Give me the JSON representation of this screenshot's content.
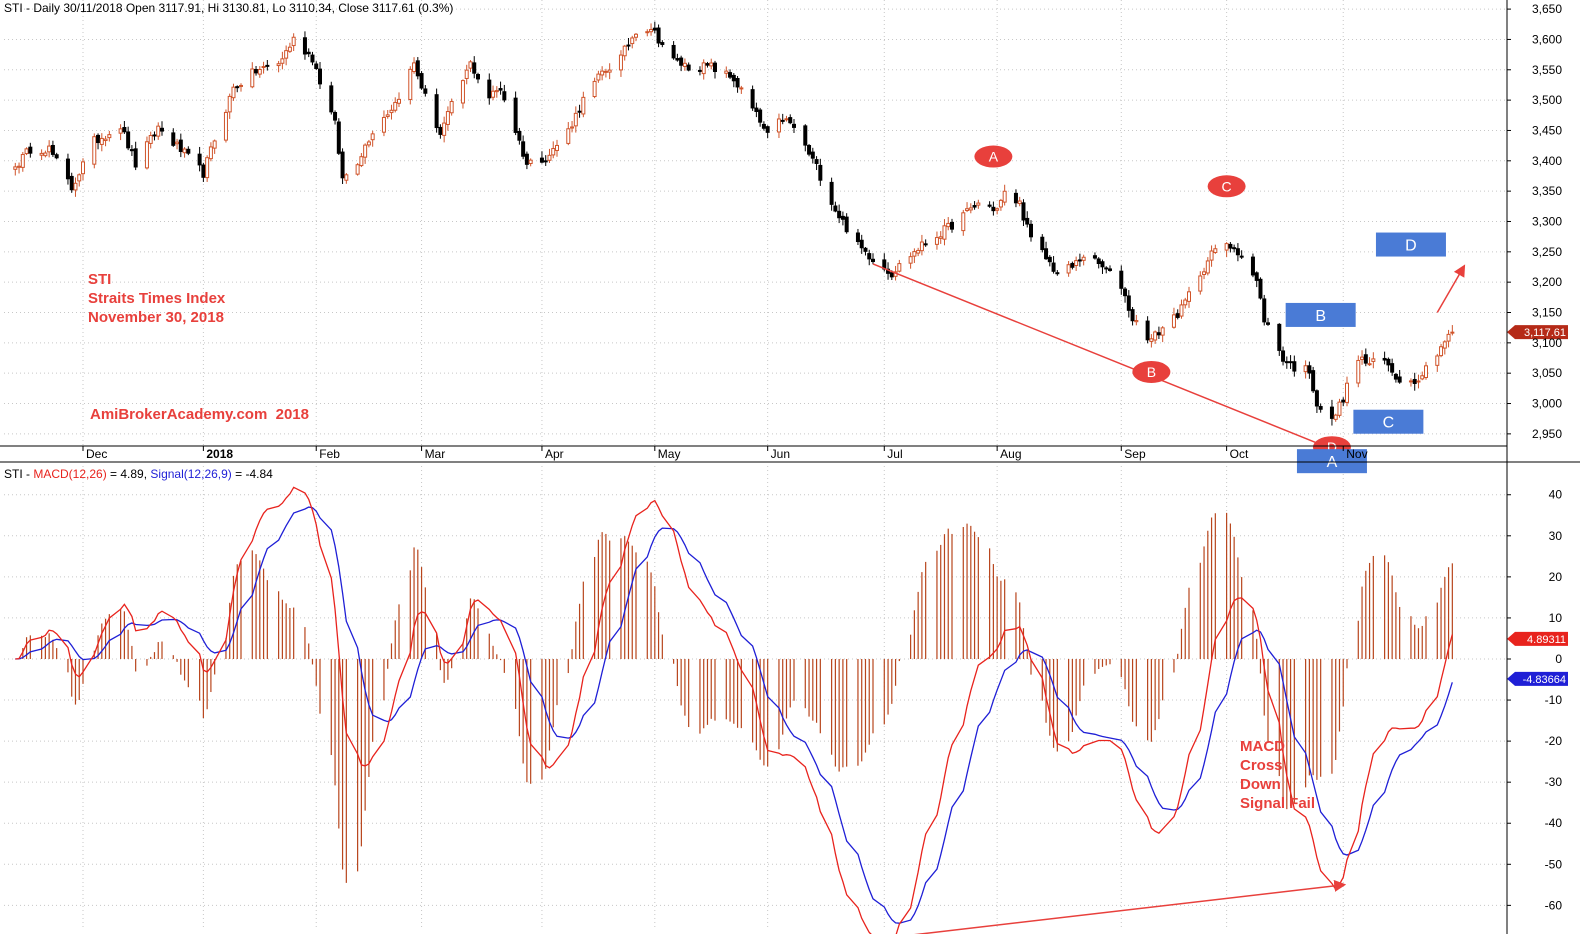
{
  "header": {
    "price_title": "STI - Daily 30/11/2018 Open 3117.91, Hi 3130.81, Lo 3110.34, Close 3117.61 (0.3%)",
    "macd_prefix": "STI - ",
    "macd_label": "MACD(12,26)",
    "macd_value": " = 4.89, ",
    "signal_label": "Signal(12,26,9)",
    "signal_value": " = -4.84"
  },
  "annotations": {
    "title_lines": [
      "STI",
      "Straits Times Index",
      "November 30, 2018"
    ],
    "watermark": "AmiBrokerAcademy.com  2018",
    "macd_note": [
      "MACD",
      "Cross",
      "Down",
      "Signal Fail"
    ],
    "oval_labels": [
      {
        "text": "A",
        "date": "2018-07-31",
        "value": 3407
      },
      {
        "text": "B",
        "date": "2018-09-11",
        "value": 3052
      },
      {
        "text": "C",
        "date": "2018-10-01",
        "value": 3358
      },
      {
        "text": "D",
        "date": "2018-10-29",
        "value": 2928
      }
    ],
    "box_labels": [
      {
        "text": "A",
        "date": "2018-10-29",
        "value": 2905
      },
      {
        "text": "B",
        "date": "2018-10-26",
        "value": 3146
      },
      {
        "text": "C",
        "date": "2018-11-13",
        "value": 2970
      },
      {
        "text": "D",
        "date": "2018-11-19",
        "value": 3262
      }
    ]
  },
  "colors": {
    "up_candle": "#d0542a",
    "down_candle": "#000000",
    "macd": "#e8231d",
    "signal": "#1f1fd6",
    "histogram": "#b8451c",
    "annotation_red": "#e8403c",
    "annotation_blue": "#4a7bd6",
    "grid": "#c7c7c7"
  },
  "chart_data": [
    {
      "type": "candlestick",
      "title": "STI - Daily 30/11/2018",
      "last_close": 3117.61,
      "last_price_label": "3,117.61",
      "ylim": [
        2930,
        3665
      ],
      "y_ticks": [
        2950,
        3000,
        3050,
        3100,
        3150,
        3200,
        3250,
        3300,
        3350,
        3400,
        3450,
        3500,
        3550,
        3600,
        3650
      ],
      "y_tick_labels": [
        "2,950",
        "3,000",
        "3,050",
        "3,100",
        "3,150",
        "3,200",
        "3,250",
        "3,300",
        "3,350",
        "3,400",
        "3,450",
        "3,500",
        "3,550",
        "3,600",
        "3,650"
      ],
      "x_range": [
        "2017-11-10",
        "2018-12-14"
      ],
      "x_ticks": [
        {
          "label": "Dec",
          "date": "2017-12-01"
        },
        {
          "label": "2018",
          "date": "2018-01-02"
        },
        {
          "label": "Feb",
          "date": "2018-02-01"
        },
        {
          "label": "Mar",
          "date": "2018-03-01"
        },
        {
          "label": "Apr",
          "date": "2018-04-02"
        },
        {
          "label": "May",
          "date": "2018-05-02"
        },
        {
          "label": "Jun",
          "date": "2018-06-01"
        },
        {
          "label": "Jul",
          "date": "2018-07-02"
        },
        {
          "label": "Aug",
          "date": "2018-08-01"
        },
        {
          "label": "Sep",
          "date": "2018-09-03"
        },
        {
          "label": "Oct",
          "date": "2018-10-01"
        },
        {
          "label": "Nov",
          "date": "2018-11-01"
        }
      ],
      "close_anchors": [
        [
          "2017-11-13",
          3390
        ],
        [
          "2017-11-17",
          3420
        ],
        [
          "2017-11-22",
          3420
        ],
        [
          "2017-11-28",
          3355
        ],
        [
          "2017-12-04",
          3432
        ],
        [
          "2017-12-11",
          3458
        ],
        [
          "2017-12-15",
          3394
        ],
        [
          "2017-12-21",
          3455
        ],
        [
          "2017-12-27",
          3418
        ],
        [
          "2018-01-02",
          3380
        ],
        [
          "2018-01-05",
          3435
        ],
        [
          "2018-01-10",
          3520
        ],
        [
          "2018-01-16",
          3548
        ],
        [
          "2018-01-22",
          3560
        ],
        [
          "2018-01-26",
          3600
        ],
        [
          "2018-01-31",
          3570
        ],
        [
          "2018-02-02",
          3532
        ],
        [
          "2018-02-06",
          3460
        ],
        [
          "2018-02-08",
          3370
        ],
        [
          "2018-02-12",
          3400
        ],
        [
          "2018-02-16",
          3450
        ],
        [
          "2018-02-22",
          3495
        ],
        [
          "2018-02-27",
          3560
        ],
        [
          "2018-03-02",
          3505
        ],
        [
          "2018-03-06",
          3445
        ],
        [
          "2018-03-09",
          3490
        ],
        [
          "2018-03-14",
          3560
        ],
        [
          "2018-03-19",
          3505
        ],
        [
          "2018-03-22",
          3520
        ],
        [
          "2018-03-26",
          3450
        ],
        [
          "2018-03-29",
          3395
        ],
        [
          "2018-04-04",
          3410
        ],
        [
          "2018-04-09",
          3450
        ],
        [
          "2018-04-13",
          3500
        ],
        [
          "2018-04-18",
          3545
        ],
        [
          "2018-04-23",
          3570
        ],
        [
          "2018-04-27",
          3615
        ],
        [
          "2018-05-01",
          3620
        ],
        [
          "2018-05-07",
          3565
        ],
        [
          "2018-05-11",
          3555
        ],
        [
          "2018-05-17",
          3555
        ],
        [
          "2018-05-23",
          3535
        ],
        [
          "2018-05-29",
          3475
        ],
        [
          "2018-06-01",
          3440
        ],
        [
          "2018-06-05",
          3470
        ],
        [
          "2018-06-08",
          3455
        ],
        [
          "2018-06-14",
          3390
        ],
        [
          "2018-06-19",
          3320
        ],
        [
          "2018-06-25",
          3260
        ],
        [
          "2018-06-29",
          3240
        ],
        [
          "2018-07-04",
          3215
        ],
        [
          "2018-07-09",
          3245
        ],
        [
          "2018-07-13",
          3265
        ],
        [
          "2018-07-18",
          3285
        ],
        [
          "2018-07-23",
          3310
        ],
        [
          "2018-07-27",
          3330
        ],
        [
          "2018-08-01",
          3320
        ],
        [
          "2018-08-03",
          3345
        ],
        [
          "2018-08-07",
          3330
        ],
        [
          "2018-08-10",
          3270
        ],
        [
          "2018-08-14",
          3240
        ],
        [
          "2018-08-17",
          3215
        ],
        [
          "2018-08-21",
          3225
        ],
        [
          "2018-08-24",
          3245
        ],
        [
          "2018-08-29",
          3225
        ],
        [
          "2018-09-03",
          3195
        ],
        [
          "2018-09-06",
          3140
        ],
        [
          "2018-09-11",
          3105
        ],
        [
          "2018-09-14",
          3125
        ],
        [
          "2018-09-19",
          3155
        ],
        [
          "2018-09-24",
          3215
        ],
        [
          "2018-09-28",
          3255
        ],
        [
          "2018-10-03",
          3260
        ],
        [
          "2018-10-05",
          3245
        ],
        [
          "2018-10-09",
          3200
        ],
        [
          "2018-10-11",
          3140
        ],
        [
          "2018-10-16",
          3075
        ],
        [
          "2018-10-19",
          3060
        ],
        [
          "2018-10-23",
          3055
        ],
        [
          "2018-10-25",
          3000
        ],
        [
          "2018-10-29",
          2970
        ],
        [
          "2018-11-01",
          3010
        ],
        [
          "2018-11-05",
          3075
        ],
        [
          "2018-11-08",
          3065
        ],
        [
          "2018-11-12",
          3070
        ],
        [
          "2018-11-15",
          3045
        ],
        [
          "2018-11-19",
          3035
        ],
        [
          "2018-11-22",
          3050
        ],
        [
          "2018-11-27",
          3095
        ],
        [
          "2018-11-30",
          3117.61
        ]
      ]
    },
    {
      "type": "line",
      "title": "STI - MACD(12,26) = 4.89, Signal(12,26,9) = -4.84",
      "ylim": [
        -66,
        47
      ],
      "y_ticks": [
        40,
        30,
        20,
        10,
        0,
        -10,
        -20,
        -30,
        -40,
        -50,
        -60
      ],
      "y_tick_labels": [
        "40",
        "30",
        "20",
        "10",
        "0",
        "-10",
        "-20",
        "-30",
        "-40",
        "-50",
        "-60"
      ],
      "series": [
        {
          "name": "MACD(12,26)",
          "last_value_label": "4.89311",
          "last": 4.89
        },
        {
          "name": "Signal(12,26,9)",
          "last_value_label": "-4.83664",
          "last": -4.84
        }
      ],
      "histogram": "MACD minus Signal",
      "trendlines": [
        {
          "panel": "price",
          "from": [
            "2018-06-29",
            3230
          ],
          "to": [
            "2018-10-29",
            2925
          ]
        },
        {
          "panel": "price",
          "from": [
            "2018-11-26",
            3150
          ],
          "to": [
            "2018-12-03",
            3225
          ]
        },
        {
          "panel": "macd",
          "from": [
            "2018-07-02",
            -68
          ],
          "to": [
            "2018-11-01",
            -55
          ]
        }
      ]
    }
  ]
}
